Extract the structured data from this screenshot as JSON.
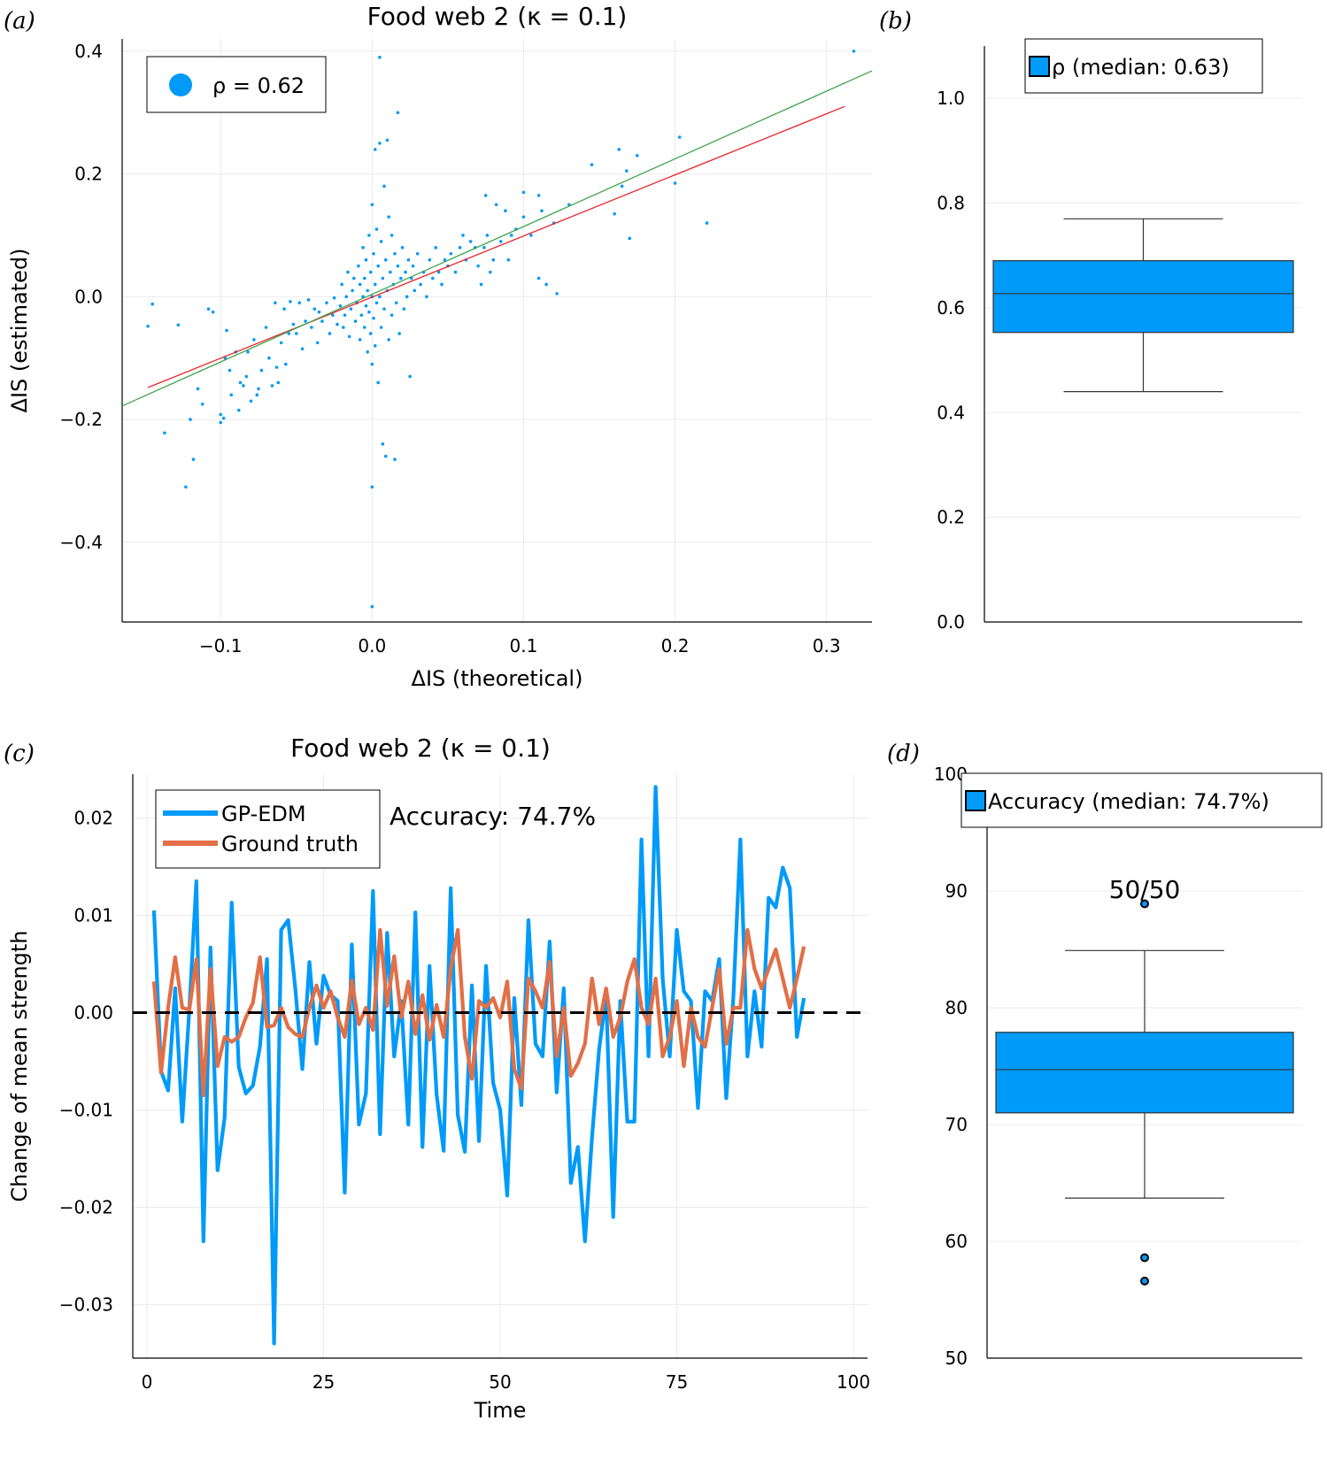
{
  "colors": {
    "blue": "#009af9",
    "orange": "#e26f46",
    "green": "#3da44d",
    "red": "#e8252b",
    "dash": "#000000",
    "grid": "#ebebeb"
  },
  "panels": {
    "a": "(a)",
    "b": "(b)",
    "c": "(c)",
    "d": "(d)"
  },
  "chart_data": [
    {
      "id": "a",
      "type": "scatter",
      "title": "Food web 2 (κ = 0.1)",
      "xlabel": "ΔIS (theoretical)",
      "ylabel": "ΔIS (estimated)",
      "xlim": [
        -0.165,
        0.33
      ],
      "ylim": [
        -0.53,
        0.42
      ],
      "xticks": [
        -0.1,
        0.0,
        0.1,
        0.2,
        0.3
      ],
      "xticklabels": [
        "−0.1",
        "0.0",
        "0.1",
        "0.2",
        "0.3"
      ],
      "yticks": [
        -0.4,
        -0.2,
        0.0,
        0.2,
        0.4
      ],
      "yticklabels": [
        "−0.4",
        "−0.2",
        "0.0",
        "0.2",
        "0.4"
      ],
      "grid": true,
      "legend": {
        "label": "ρ = 0.62",
        "position": "top-left"
      },
      "points": [
        [
          -0.148,
          -0.048
        ],
        [
          -0.145,
          -0.012
        ],
        [
          -0.137,
          -0.222
        ],
        [
          -0.128,
          -0.046
        ],
        [
          -0.123,
          -0.31
        ],
        [
          -0.12,
          -0.2
        ],
        [
          -0.118,
          -0.265
        ],
        [
          -0.115,
          -0.15
        ],
        [
          -0.112,
          -0.175
        ],
        [
          -0.108,
          -0.02
        ],
        [
          -0.105,
          -0.025
        ],
        [
          -0.1,
          -0.192
        ],
        [
          -0.1,
          -0.205
        ],
        [
          -0.098,
          -0.198
        ],
        [
          -0.097,
          -0.1
        ],
        [
          -0.096,
          -0.055
        ],
        [
          -0.094,
          -0.12
        ],
        [
          -0.093,
          -0.16
        ],
        [
          -0.09,
          -0.09
        ],
        [
          -0.088,
          -0.185
        ],
        [
          -0.087,
          -0.14
        ],
        [
          -0.085,
          -0.145
        ],
        [
          -0.083,
          -0.13
        ],
        [
          -0.082,
          -0.09
        ],
        [
          -0.08,
          -0.17
        ],
        [
          -0.078,
          -0.07
        ],
        [
          -0.076,
          -0.16
        ],
        [
          -0.075,
          -0.15
        ],
        [
          -0.073,
          -0.12
        ],
        [
          -0.07,
          -0.05
        ],
        [
          -0.068,
          -0.1
        ],
        [
          -0.066,
          -0.145
        ],
        [
          -0.064,
          -0.01
        ],
        [
          -0.063,
          -0.115
        ],
        [
          -0.062,
          -0.14
        ],
        [
          -0.06,
          -0.075
        ],
        [
          -0.058,
          -0.02
        ],
        [
          -0.057,
          -0.11
        ],
        [
          -0.055,
          -0.06
        ],
        [
          -0.054,
          -0.008
        ],
        [
          -0.052,
          -0.045
        ],
        [
          -0.05,
          -0.06
        ],
        [
          -0.048,
          -0.01
        ],
        [
          -0.046,
          -0.085
        ],
        [
          -0.044,
          -0.04
        ],
        [
          -0.042,
          -0.005
        ],
        [
          -0.04,
          -0.05
        ],
        [
          -0.038,
          -0.02
        ],
        [
          -0.036,
          -0.075
        ],
        [
          -0.035,
          -0.025
        ],
        [
          -0.033,
          -0.04
        ],
        [
          -0.03,
          -0.01
        ],
        [
          -0.028,
          -0.06
        ],
        [
          -0.026,
          -0.03
        ],
        [
          -0.025,
          -0.002
        ],
        [
          -0.023,
          -0.045
        ],
        [
          -0.021,
          -0.015
        ],
        [
          -0.02,
          0.02
        ],
        [
          -0.019,
          -0.05
        ],
        [
          -0.018,
          -0.03
        ],
        [
          -0.017,
          0.0
        ],
        [
          -0.016,
          0.04
        ],
        [
          -0.015,
          -0.065
        ],
        [
          -0.014,
          -0.02
        ],
        [
          -0.013,
          0.01
        ],
        [
          -0.012,
          0.03
        ],
        [
          -0.011,
          -0.04
        ],
        [
          -0.01,
          -0.01
        ],
        [
          -0.009,
          0.05
        ],
        [
          -0.008,
          -0.07
        ],
        [
          -0.008,
          0.02
        ],
        [
          -0.007,
          -0.03
        ],
        [
          -0.006,
          0.0
        ],
        [
          -0.006,
          0.08
        ],
        [
          -0.005,
          -0.05
        ],
        [
          -0.005,
          0.03
        ],
        [
          -0.004,
          -0.015
        ],
        [
          -0.004,
          0.06
        ],
        [
          -0.003,
          -0.09
        ],
        [
          -0.003,
          0.01
        ],
        [
          -0.002,
          0.1
        ],
        [
          -0.002,
          -0.025
        ],
        [
          -0.001,
          0.04
        ],
        [
          -0.001,
          -0.06
        ],
        [
          0.0,
          0.0
        ],
        [
          0.0,
          0.15
        ],
        [
          0.0,
          -0.11
        ],
        [
          0.001,
          0.07
        ],
        [
          0.001,
          -0.035
        ],
        [
          0.002,
          0.02
        ],
        [
          0.002,
          0.24
        ],
        [
          0.002,
          -0.08
        ],
        [
          0.003,
          0.11
        ],
        [
          0.003,
          -0.01
        ],
        [
          0.004,
          0.05
        ],
        [
          0.004,
          -0.14
        ],
        [
          0.005,
          0.0
        ],
        [
          0.005,
          0.25
        ],
        [
          0.005,
          0.39
        ],
        [
          0.006,
          -0.05
        ],
        [
          0.006,
          0.09
        ],
        [
          0.007,
          0.03
        ],
        [
          0.007,
          -0.24
        ],
        [
          0.008,
          -0.02
        ],
        [
          0.008,
          0.18
        ],
        [
          0.009,
          0.06
        ],
        [
          0.009,
          -0.26
        ],
        [
          0.01,
          0.01
        ],
        [
          0.01,
          0.255
        ],
        [
          0.011,
          -0.07
        ],
        [
          0.011,
          0.13
        ],
        [
          0.012,
          0.04
        ],
        [
          0.013,
          -0.03
        ],
        [
          0.013,
          0.1
        ],
        [
          0.014,
          0.02
        ],
        [
          0.015,
          -0.265
        ],
        [
          0.015,
          0.07
        ],
        [
          0.016,
          -0.01
        ],
        [
          0.017,
          0.05
        ],
        [
          0.017,
          0.3
        ],
        [
          0.018,
          -0.06
        ],
        [
          0.019,
          0.03
        ],
        [
          0.02,
          0.08
        ],
        [
          0.021,
          -0.02
        ],
        [
          0.022,
          0.04
        ],
        [
          0.023,
          0.0
        ],
        [
          0.024,
          0.06
        ],
        [
          0.025,
          -0.13
        ],
        [
          0.026,
          0.03
        ],
        [
          0.027,
          0.05
        ],
        [
          0.028,
          0.01
        ],
        [
          0.03,
          0.07
        ],
        [
          0.032,
          0.02
        ],
        [
          0.034,
          0.04
        ],
        [
          0.036,
          0.0
        ],
        [
          0.038,
          0.06
        ],
        [
          0.04,
          0.03
        ],
        [
          0.042,
          0.08
        ],
        [
          0.044,
          0.04
        ],
        [
          0.046,
          0.02
        ],
        [
          0.048,
          0.06
        ],
        [
          0.05,
          0.05
        ],
        [
          0.052,
          0.07
        ],
        [
          0.055,
          0.04
        ],
        [
          0.058,
          0.08
        ],
        [
          0.06,
          0.1
        ],
        [
          0.062,
          0.06
        ],
        [
          0.065,
          0.09
        ],
        [
          0.068,
          0.08
        ],
        [
          0.07,
          0.05
        ],
        [
          0.072,
          0.02
        ],
        [
          0.074,
          0.08
        ],
        [
          0.075,
          0.165
        ],
        [
          0.076,
          0.1
        ],
        [
          0.078,
          0.04
        ],
        [
          0.08,
          0.06
        ],
        [
          0.082,
          0.15
        ],
        [
          0.085,
          0.09
        ],
        [
          0.088,
          0.14
        ],
        [
          0.09,
          0.06
        ],
        [
          0.092,
          0.1
        ],
        [
          0.095,
          0.11
        ],
        [
          0.1,
          0.13
        ],
        [
          0.1,
          0.17
        ],
        [
          0.105,
          0.1
        ],
        [
          0.11,
          0.165
        ],
        [
          0.112,
          0.14
        ],
        [
          0.11,
          0.03
        ],
        [
          0.115,
          0.02
        ],
        [
          0.12,
          0.12
        ],
        [
          0.122,
          0.005
        ],
        [
          0.13,
          0.15
        ],
        [
          0.145,
          0.215
        ],
        [
          0.16,
          0.135
        ],
        [
          0.163,
          0.24
        ],
        [
          0.165,
          0.18
        ],
        [
          0.168,
          0.205
        ],
        [
          0.17,
          0.095
        ],
        [
          0.175,
          0.23
        ],
        [
          0.2,
          0.185
        ],
        [
          0.203,
          0.26
        ],
        [
          0.221,
          0.12
        ],
        [
          0.318,
          0.4
        ],
        [
          0.0,
          -0.505
        ],
        [
          0.0,
          -0.31
        ]
      ],
      "lines": [
        {
          "name": "fit",
          "color": "red",
          "x": [
            -0.148,
            0.312
          ],
          "y": [
            -0.148,
            0.31
          ]
        },
        {
          "name": "identity",
          "color": "green",
          "x": [
            -0.165,
            0.33
          ],
          "y": [
            -0.178,
            0.368
          ]
        }
      ]
    },
    {
      "id": "b",
      "type": "box",
      "legend": {
        "label": "ρ (median: 0.63)",
        "position": "top"
      },
      "ylim": [
        0.0,
        1.1
      ],
      "yticks": [
        0.0,
        0.2,
        0.4,
        0.6,
        0.8,
        1.0
      ],
      "yticklabels": [
        "0.0",
        "0.2",
        "0.4",
        "0.6",
        "0.8",
        "1.0"
      ],
      "box": {
        "whisker_low": 0.44,
        "q1": 0.553,
        "median": 0.627,
        "q3": 0.69,
        "whisker_high": 0.77,
        "outliers": []
      }
    },
    {
      "id": "c",
      "type": "line",
      "title": "Food web 2 (κ = 0.1)",
      "xlabel": "Time",
      "ylabel": "Change of mean strength",
      "xlim": [
        -2,
        102
      ],
      "ylim": [
        -0.0355,
        0.0245
      ],
      "xticks": [
        0,
        25,
        50,
        75,
        100
      ],
      "xticklabels": [
        "0",
        "25",
        "50",
        "75",
        "100"
      ],
      "yticks": [
        -0.03,
        -0.02,
        -0.01,
        0.0,
        0.01,
        0.02
      ],
      "yticklabels": [
        "−0.03",
        "−0.02",
        "−0.01",
        "0.00",
        "0.01",
        "0.02"
      ],
      "annotation": "Accuracy: 74.7%",
      "legend_position": "top-left",
      "series": [
        {
          "name": "GP-EDM",
          "color": "blue",
          "y": [
            0.0105,
            -0.006,
            -0.008,
            0.0025,
            -0.0112,
            0.0003,
            0.0135,
            -0.0235,
            0.0067,
            -0.0162,
            -0.0108,
            0.0113,
            -0.0056,
            -0.0083,
            -0.0075,
            -0.0035,
            0.0055,
            -0.034,
            0.0085,
            0.0095,
            0.0025,
            -0.0058,
            0.0052,
            -0.0032,
            0.0038,
            0.0018,
            0.0012,
            -0.0185,
            0.007,
            -0.0115,
            -0.0083,
            0.0125,
            -0.0125,
            0.0082,
            -0.0045,
            0.0012,
            -0.0115,
            0.0103,
            -0.0138,
            0.0048,
            -0.0084,
            -0.0142,
            0.0128,
            -0.0105,
            -0.0143,
            0.0028,
            -0.0132,
            0.0048,
            -0.0072,
            -0.01,
            -0.0188,
            0.0015,
            -0.0095,
            0.0095,
            -0.0032,
            -0.0045,
            0.0073,
            -0.0082,
            0.0025,
            -0.0175,
            -0.0138,
            -0.0235,
            -0.0128,
            -0.0038,
            0.0018,
            -0.021,
            0.0012,
            -0.0112,
            -0.0112,
            0.0178,
            -0.0045,
            0.0232,
            0.0035,
            -0.0045,
            0.0085,
            0.0022,
            0.0012,
            -0.0098,
            0.0022,
            0.0012,
            0.0055,
            -0.0088,
            0.0015,
            0.0178,
            -0.0045,
            0.0022,
            -0.0035,
            0.0118,
            0.0108,
            0.0149,
            0.0128,
            -0.0025,
            0.0015
          ]
        },
        {
          "name": "Ground truth",
          "color": "orange",
          "y": [
            0.0032,
            -0.0062,
            0.0005,
            0.0057,
            0.0005,
            0.0003,
            0.0055,
            -0.0085,
            0.0045,
            -0.0055,
            -0.0025,
            -0.003,
            -0.0025,
            -0.0005,
            0.001,
            0.0057,
            -0.0015,
            -0.0013,
            0.0005,
            -0.0015,
            -0.0022,
            -0.0025,
            0.0005,
            0.0028,
            0.0005,
            0.0022,
            -0.0005,
            -0.0025,
            0.0033,
            -0.0012,
            0.0005,
            -0.0018,
            0.0085,
            0.0007,
            0.0058,
            -0.0005,
            0.0032,
            -0.0022,
            0.0018,
            -0.0028,
            0.0008,
            -0.0025,
            0.0045,
            0.0085,
            -0.0025,
            -0.0068,
            0.0012,
            0.0005,
            0.0015,
            -0.0005,
            0.0032,
            -0.0058,
            -0.0078,
            0.0035,
            0.0022,
            0.0005,
            0.0052,
            -0.0045,
            0.0005,
            -0.0065,
            -0.0052,
            -0.0032,
            0.0035,
            -0.0012,
            0.0025,
            -0.0025,
            -0.0005,
            0.0032,
            0.0055,
            0.0005,
            -0.0012,
            0.0035,
            -0.0045,
            -0.0025,
            0.0012,
            -0.0055,
            0.0005,
            -0.0025,
            -0.0035,
            0.0005,
            0.0045,
            -0.0032,
            0.0005,
            0.0005,
            0.0085,
            0.0045,
            0.0025,
            0.0045,
            0.0065,
            0.0035,
            0.0005,
            0.0035,
            0.0068
          ]
        },
        {
          "name": "zero",
          "color": "dash",
          "style": "dashed",
          "y_const": 0.0
        }
      ]
    },
    {
      "id": "d",
      "type": "box",
      "legend": {
        "label": "Accuracy (median: 74.7%)",
        "position": "top"
      },
      "annotation": "50/50",
      "ylim": [
        50,
        100
      ],
      "yticks": [
        50,
        60,
        70,
        80,
        90,
        100
      ],
      "yticklabels": [
        "50",
        "60",
        "70",
        "80",
        "90",
        "100"
      ],
      "box": {
        "whisker_low": 63.7,
        "q1": 71.0,
        "median": 74.7,
        "q3": 77.9,
        "whisker_high": 84.9,
        "outliers": [
          88.9,
          58.6,
          56.6
        ]
      }
    }
  ]
}
